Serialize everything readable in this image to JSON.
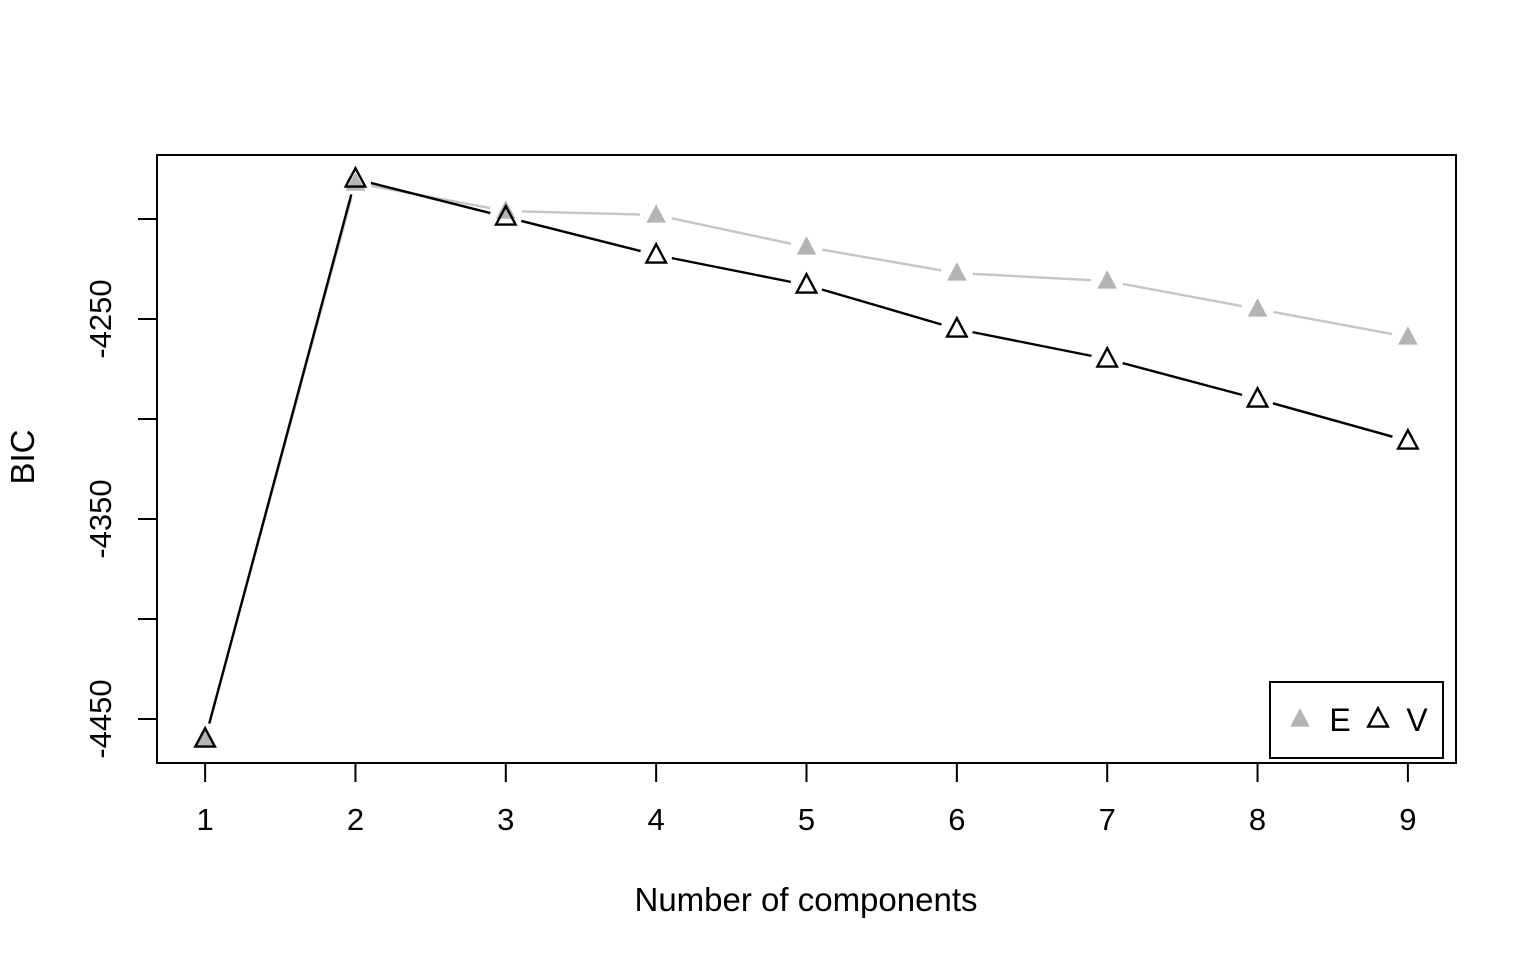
{
  "figure": {
    "background": "#ffffff"
  },
  "chart_data": {
    "type": "line",
    "title": "",
    "xlabel": "Number of components",
    "ylabel": "BIC",
    "grid": false,
    "xlim": [
      0.68,
      9.32
    ],
    "ylim": [
      -4472,
      -4168
    ],
    "x": [
      1,
      2,
      3,
      4,
      5,
      6,
      7,
      8,
      9
    ],
    "series": [
      {
        "name": "E",
        "marker": "filled-triangle",
        "line_color": "#c6c6c6",
        "marker_color": "#b4b4b4",
        "values": [
          -4460,
          -4182,
          -4196,
          -4198,
          -4214,
          -4227,
          -4231,
          -4245,
          -4259
        ]
      },
      {
        "name": "V",
        "marker": "open-triangle",
        "line_color": "#000000",
        "marker_color": "#000000",
        "values": [
          -4460,
          -4180,
          -4199,
          -4218,
          -4233,
          -4255,
          -4270,
          -4290,
          -4311
        ]
      }
    ],
    "x_axis": {
      "ticks": [
        {
          "value": 1,
          "label": "1"
        },
        {
          "value": 2,
          "label": "2"
        },
        {
          "value": 3,
          "label": "3"
        },
        {
          "value": 4,
          "label": "4"
        },
        {
          "value": 5,
          "label": "5"
        },
        {
          "value": 6,
          "label": "6"
        },
        {
          "value": 7,
          "label": "7"
        },
        {
          "value": 8,
          "label": "8"
        },
        {
          "value": 9,
          "label": "9"
        }
      ]
    },
    "y_axis": {
      "ticks": [
        {
          "value": -4200,
          "label": ""
        },
        {
          "value": -4250,
          "label": "-4250"
        },
        {
          "value": -4300,
          "label": ""
        },
        {
          "value": -4350,
          "label": "-4350"
        },
        {
          "value": -4400,
          "label": ""
        },
        {
          "value": -4450,
          "label": "-4450"
        }
      ]
    },
    "legend": {
      "position": "bottom-right",
      "entries": [
        {
          "label": "E",
          "marker": "filled-triangle"
        },
        {
          "label": "V",
          "marker": "open-triangle"
        }
      ]
    },
    "colors": {
      "box": "#000000",
      "text": "#000000",
      "e_line": "#c6c6c6",
      "e_marker": "#b4b4b4",
      "v_line": "#000000"
    }
  }
}
